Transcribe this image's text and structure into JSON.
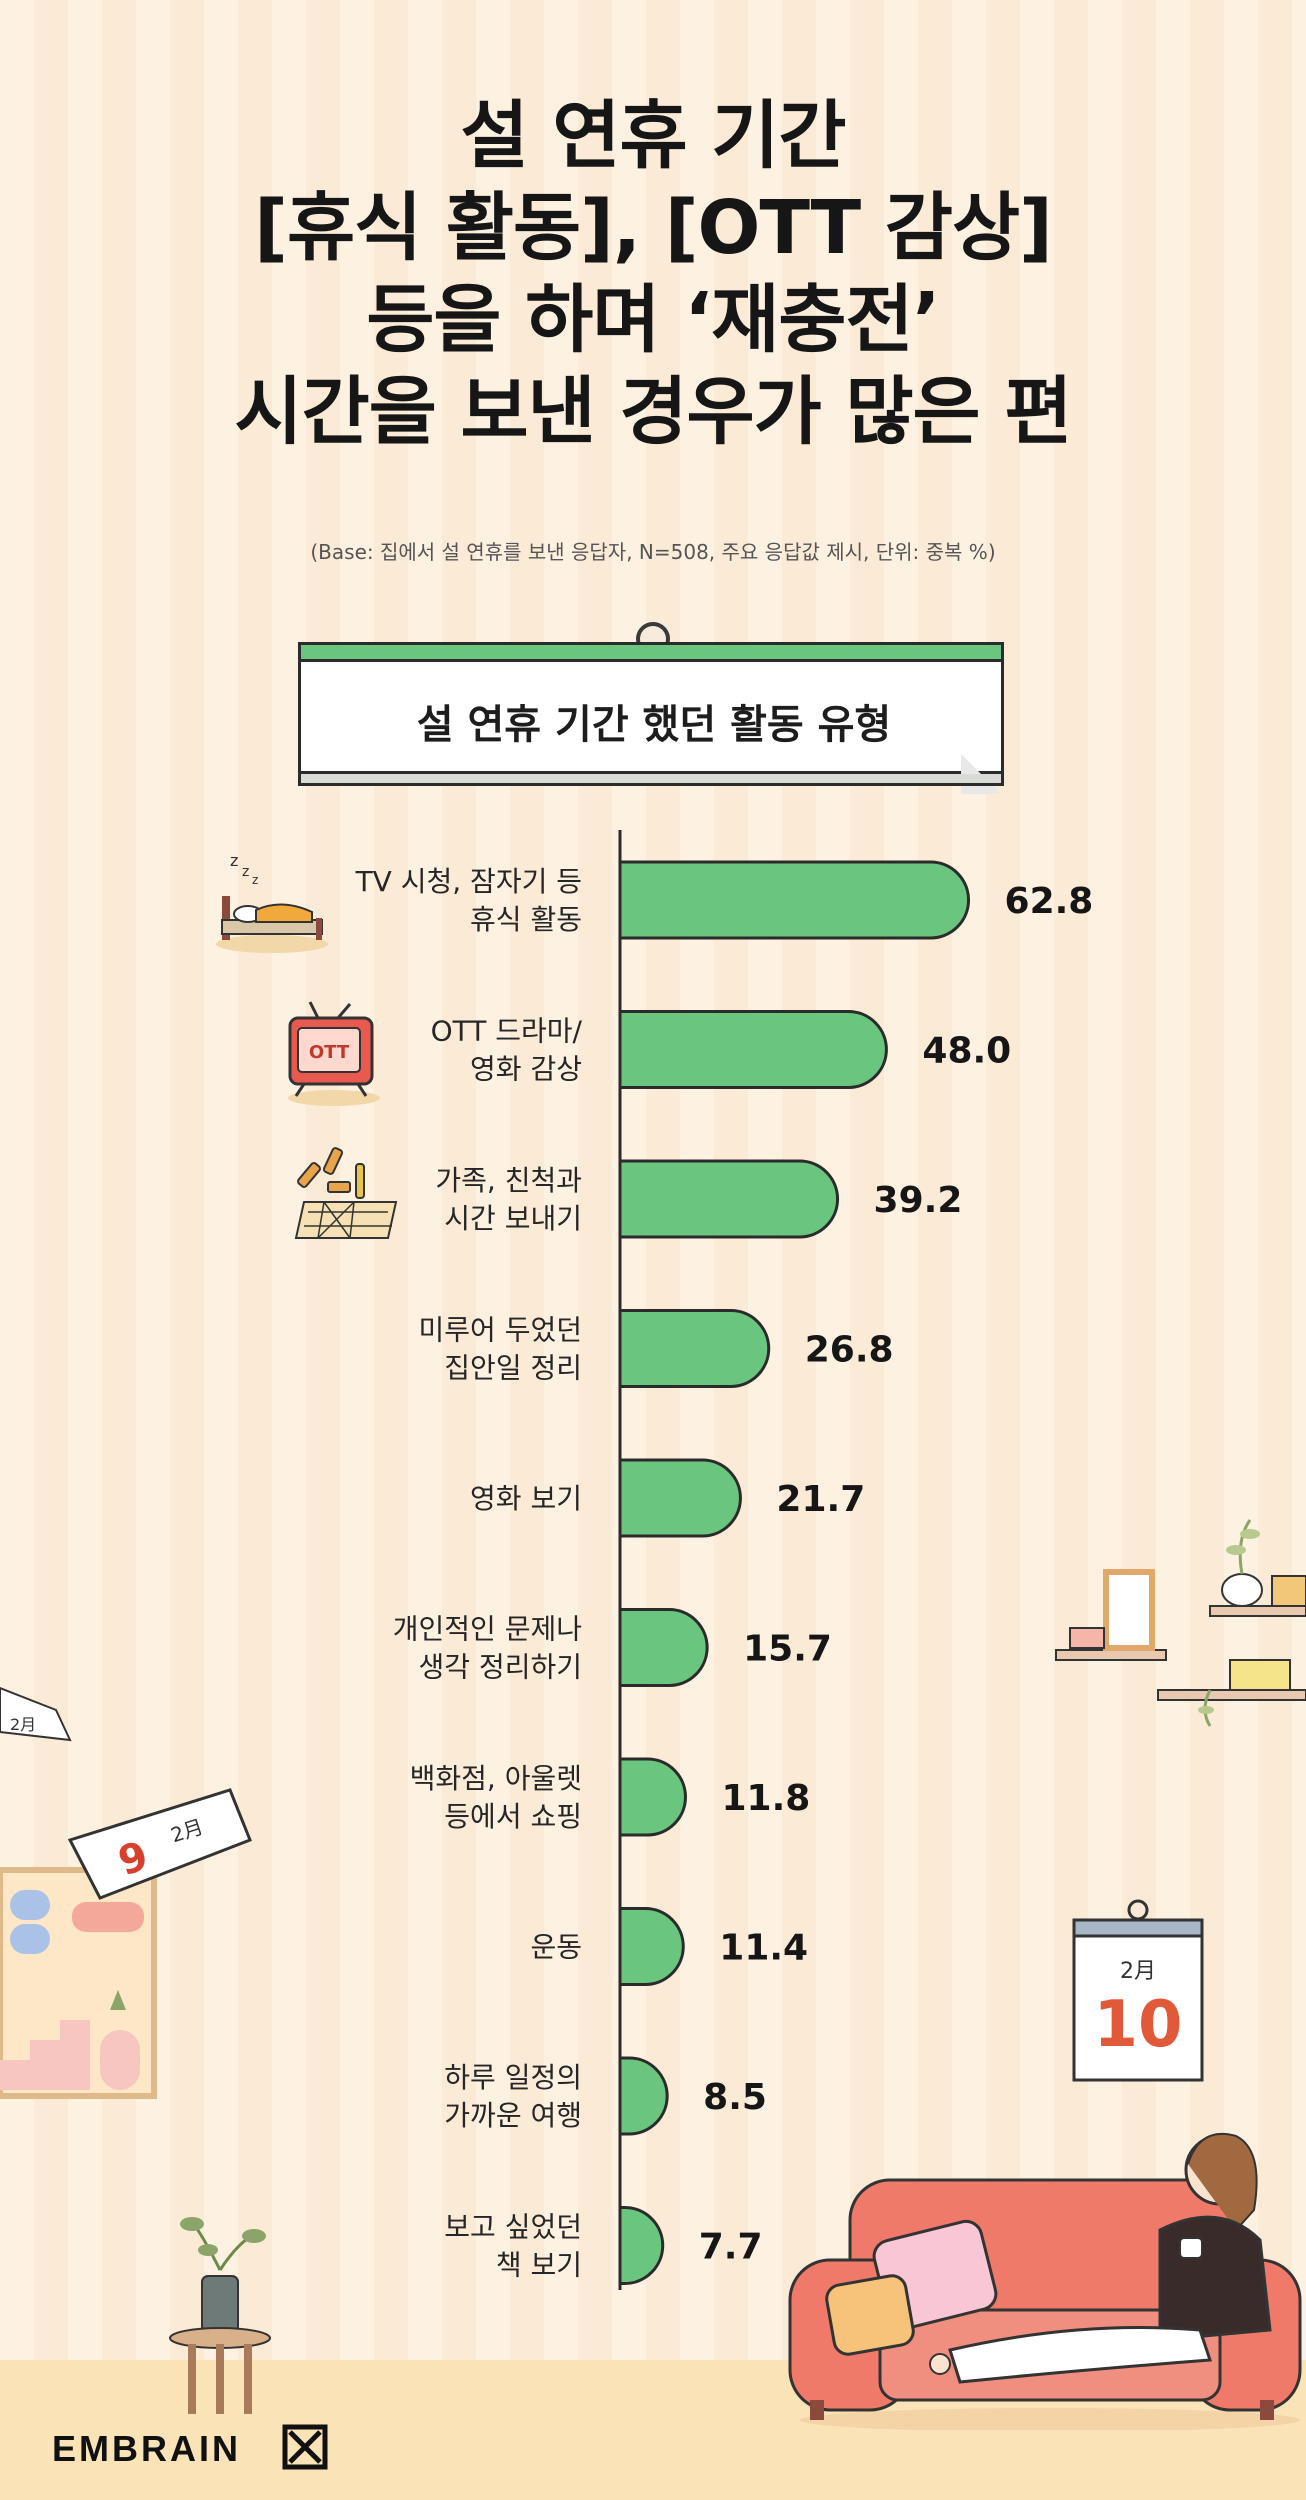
{
  "title_lines": [
    "설 연휴 기간",
    "[휴식 활동], [OTT 감상]",
    "등을 하며 ‘재충전’",
    "시간을 보낸 경우가 많은 편"
  ],
  "base_note": "(Base: 집에서 설 연휴를 보낸 응답자, N=508, 주요 응답값 제시, 단위: 중복 %)",
  "banner": {
    "text": "설 연휴 기간 했던 활동 유형"
  },
  "colors": {
    "bar": "#6ac57e",
    "bar_stroke": "#2b2b2b",
    "axis": "#2b2b2b"
  },
  "icons": [
    "sleeping-bed-icon",
    "ott-tv-icon",
    "board-game-icon"
  ],
  "calendar_right": {
    "month": "2月",
    "day": "10"
  },
  "calendar_left": {
    "month": "2月",
    "day": "9"
  },
  "calendar_small": {
    "month": "2月"
  },
  "logo": {
    "text": "EMBRAIN"
  },
  "chart_data": {
    "type": "bar",
    "orientation": "horizontal",
    "categories": [
      [
        "TV 시청, 잠자기 등",
        "휴식 활동"
      ],
      [
        "OTT 드라마/",
        "영화 감상"
      ],
      [
        "가족, 친척과",
        "시간 보내기"
      ],
      [
        "미루어 두었던",
        "집안일 정리"
      ],
      [
        "영화 보기"
      ],
      [
        "개인적인 문제나",
        "생각 정리하기"
      ],
      [
        "백화점, 아울렛",
        "등에서 쇼핑"
      ],
      [
        "운동"
      ],
      [
        "하루 일정의",
        "가까운 여행"
      ],
      [
        "보고 싶었던",
        "책 보기"
      ]
    ],
    "values": [
      62.8,
      48.0,
      39.2,
      26.8,
      21.7,
      15.7,
      11.8,
      11.4,
      8.5,
      7.7
    ],
    "value_labels": [
      "62.8",
      "48.0",
      "39.2",
      "26.8",
      "21.7",
      "15.7",
      "11.8",
      "11.4",
      "8.5",
      "7.7"
    ],
    "xlim": [
      0,
      100
    ],
    "legend": "none",
    "grid": false
  }
}
